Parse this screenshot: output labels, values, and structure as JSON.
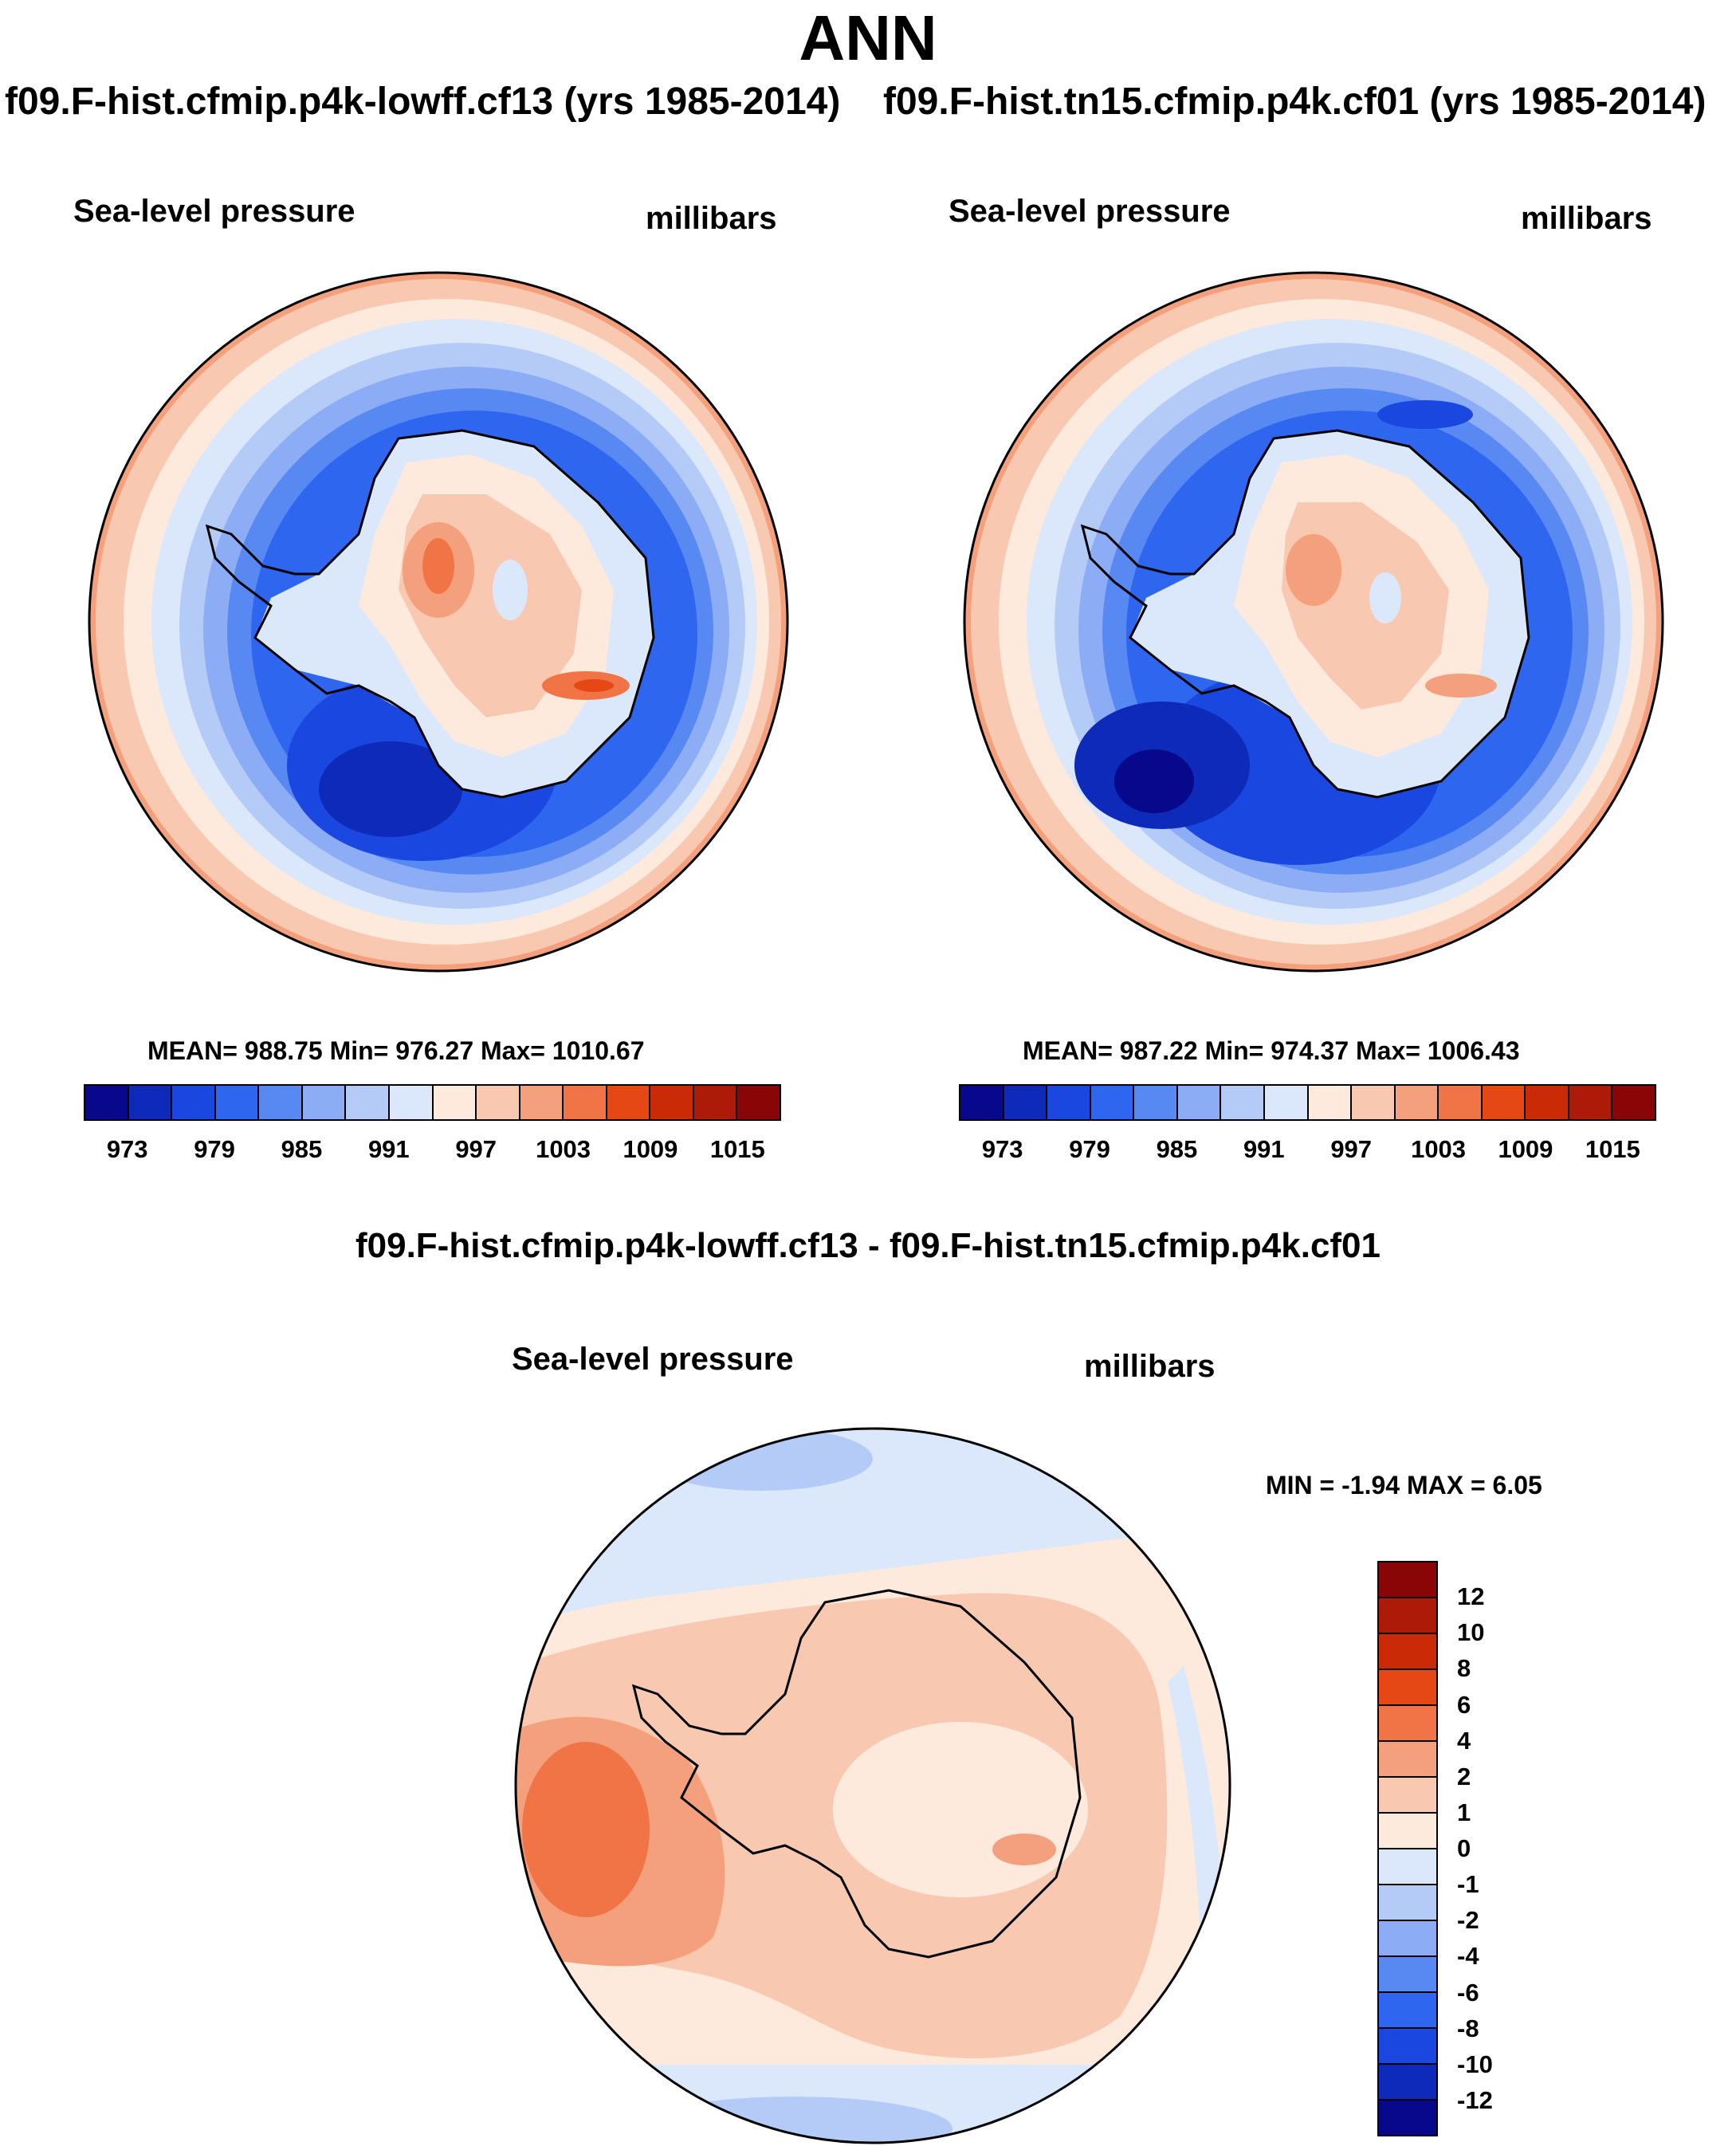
{
  "title": "ANN",
  "case1_title": "f09.F-hist.cfmip.p4k-lowff.cf13 (yrs 1985-2014)",
  "case2_title": "f09.F-hist.tn15.cfmip.p4k.cf01 (yrs 1985-2014)",
  "diff_title": "f09.F-hist.cfmip.p4k-lowff.cf13 - f09.F-hist.tn15.cfmip.p4k.cf01",
  "panels": [
    {
      "variable": "Sea-level pressure",
      "units": "millibars",
      "stats": "MEAN= 988.75  Min= 976.27  Max= 1010.67"
    },
    {
      "variable": "Sea-level pressure",
      "units": "millibars",
      "stats": "MEAN= 987.22  Min= 974.37  Max= 1006.43"
    },
    {
      "variable": "Sea-level pressure",
      "units": "millibars",
      "stats": "MIN =  -1.94 MAX =   6.05"
    }
  ],
  "colors": {
    "abs_levels": [
      "#08088c",
      "#0d2ab8",
      "#1a47df",
      "#2e66f0",
      "#5889f2",
      "#8cadf5",
      "#b4cbf8",
      "#dbe8fc",
      "#fdeadc",
      "#f9c8b0",
      "#f5a07d",
      "#f07446",
      "#e54715",
      "#cb2a06",
      "#ae1a08",
      "#8a0606"
    ],
    "diff_levels": [
      "#08088c",
      "#0d2ab8",
      "#1a47df",
      "#2e66f0",
      "#5889f2",
      "#8cadf5",
      "#b4cbf8",
      "#dbe8fc",
      "#fdeadc",
      "#f9c8b0",
      "#f5a07d",
      "#f07446",
      "#e54715",
      "#cb2a06",
      "#ae1a08",
      "#8a0606"
    ]
  },
  "chart_data": [
    {
      "type": "heatmap",
      "projection": "south polar stereographic",
      "title": "f09.F-hist.cfmip.p4k-lowff.cf13 (yrs 1985-2014)",
      "variable": "Sea-level pressure",
      "units": "millibars",
      "mean": 988.75,
      "min": 976.27,
      "max": 1010.67,
      "colorbar_ticks": [
        "973",
        "979",
        "985",
        "991",
        "997",
        "1003",
        "1009",
        "1015"
      ]
    },
    {
      "type": "heatmap",
      "projection": "south polar stereographic",
      "title": "f09.F-hist.tn15.cfmip.p4k.cf01 (yrs 1985-2014)",
      "variable": "Sea-level pressure",
      "units": "millibars",
      "mean": 987.22,
      "min": 974.37,
      "max": 1006.43,
      "colorbar_ticks": [
        "973",
        "979",
        "985",
        "991",
        "997",
        "1003",
        "1009",
        "1015"
      ]
    },
    {
      "type": "heatmap",
      "projection": "south polar stereographic",
      "title": "f09.F-hist.cfmip.p4k-lowff.cf13 - f09.F-hist.tn15.cfmip.p4k.cf01",
      "variable": "Sea-level pressure",
      "units": "millibars",
      "min": -1.94,
      "max": 6.05,
      "colorbar_ticks": [
        "12",
        "10",
        "8",
        "6",
        "4",
        "2",
        "1",
        "0",
        "-1",
        "-2",
        "-4",
        "-6",
        "-8",
        "-10",
        "-12"
      ]
    }
  ]
}
